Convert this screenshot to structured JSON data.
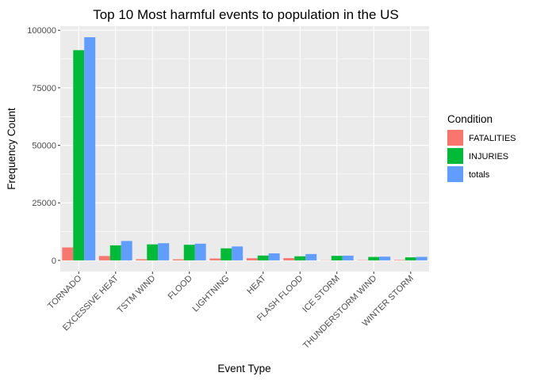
{
  "chart_data": {
    "type": "bar",
    "title": "Top 10 Most harmful events to population in the US",
    "xlabel": "Event Type",
    "ylabel": "Frequency Count",
    "ylim": [
      -4850,
      101800
    ],
    "yticks": [
      0,
      25000,
      50000,
      75000,
      100000
    ],
    "ytick_labels": [
      "0",
      "25000",
      "50000",
      "75000",
      "100000"
    ],
    "grid": true,
    "legend_title": "Condition",
    "legend_position": "right",
    "categories": [
      "TORNADO",
      "EXCESSIVE HEAT",
      "TSTM WIND",
      "FLOOD",
      "LIGHTNING",
      "HEAT",
      "FLASH FLOOD",
      "ICE STORM",
      "THUNDERSTORM WIND",
      "WINTER STORM"
    ],
    "series": [
      {
        "name": "FATALITIES",
        "color": "#F8766D",
        "values": [
          5633,
          1903,
          504,
          470,
          816,
          937,
          978,
          89,
          133,
          206
        ]
      },
      {
        "name": "INJURIES",
        "color": "#00BA38",
        "values": [
          91346,
          6525,
          6957,
          6789,
          5230,
          2100,
          1777,
          1975,
          1488,
          1321
        ]
      },
      {
        "name": "totals",
        "color": "#619CFF",
        "values": [
          96979,
          8428,
          7461,
          7259,
          6046,
          3037,
          2755,
          2064,
          1621,
          1527
        ]
      }
    ]
  }
}
